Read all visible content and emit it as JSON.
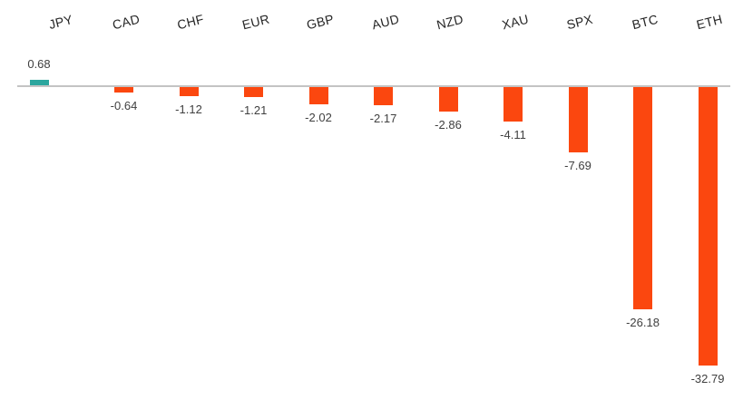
{
  "chart_data": {
    "type": "bar",
    "title": "",
    "xlabel": "",
    "ylabel": "",
    "categories": [
      "JPY",
      "CAD",
      "CHF",
      "EUR",
      "GBP",
      "AUD",
      "NZD",
      "XAU",
      "SPX",
      "BTC",
      "ETH"
    ],
    "values": [
      0.68,
      -0.64,
      -1.12,
      -1.21,
      -2.02,
      -2.17,
      -2.86,
      -4.11,
      -7.69,
      -26.18,
      -32.79
    ],
    "data_labels": [
      "0.68",
      "-0.64",
      "-1.12",
      "-1.21",
      "-2.02",
      "-2.17",
      "-2.86",
      "-4.11",
      "-7.69",
      "-26.18",
      "-32.79"
    ],
    "baseline_value": 0,
    "ylim": [
      -35,
      2
    ],
    "grid": false,
    "legend": "none",
    "value_label_position": "outside-end",
    "category_label_position": "top",
    "category_label_rotation_deg": -14,
    "colors": {
      "positive_bar": "#2CA69E",
      "negative_bar": "#FB470F",
      "axis_line": "#C4C4C4",
      "category_label": "#262626",
      "value_label": "#404040",
      "background": "#FFFFFF"
    }
  }
}
